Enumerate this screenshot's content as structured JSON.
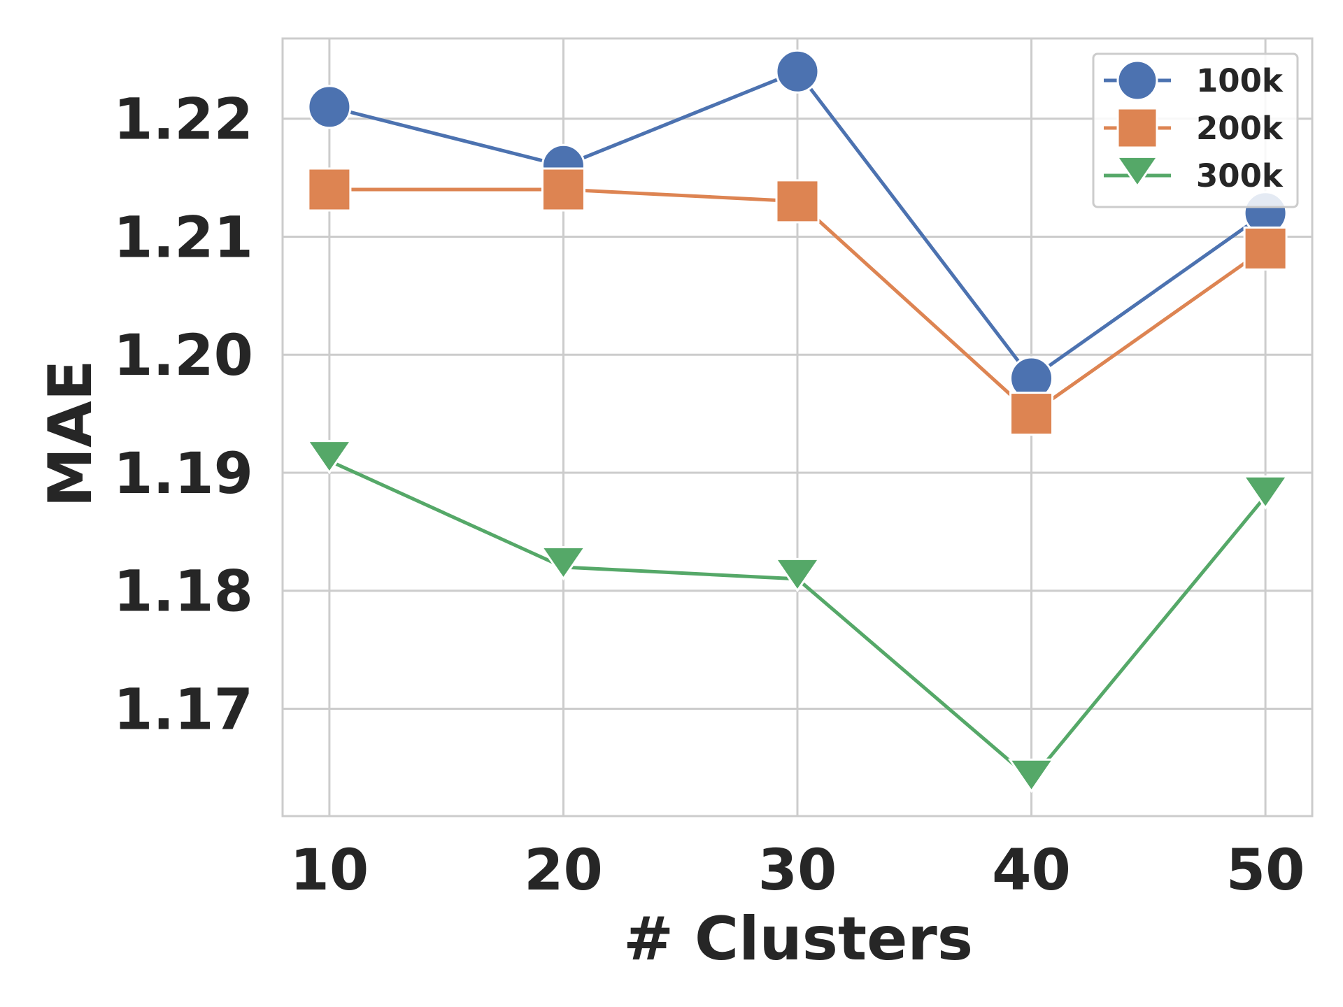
{
  "chart_data": {
    "type": "line",
    "title": "",
    "xlabel": "# Clusters",
    "ylabel": "MAE",
    "x": [
      10,
      20,
      30,
      40,
      50
    ],
    "x_ticks": [
      10,
      20,
      30,
      40,
      50
    ],
    "y_ticks": [
      1.17,
      1.18,
      1.19,
      1.2,
      1.21,
      1.22
    ],
    "y_tick_labels": [
      "1.17",
      "1.18",
      "1.19",
      "1.20",
      "1.21",
      "1.22"
    ],
    "xlim": [
      8,
      52
    ],
    "ylim": [
      1.1609,
      1.2268
    ],
    "grid": true,
    "legend_position": "top-right",
    "series": [
      {
        "name": "100k",
        "marker": "circle",
        "color": "#4c72b0",
        "values": [
          1.221,
          1.216,
          1.224,
          1.198,
          1.212
        ]
      },
      {
        "name": "200k",
        "marker": "square",
        "color": "#dd8452",
        "values": [
          1.214,
          1.214,
          1.213,
          1.195,
          1.209
        ]
      },
      {
        "name": "300k",
        "marker": "triangle-down",
        "color": "#55a868",
        "values": [
          1.191,
          1.182,
          1.181,
          1.164,
          1.188
        ]
      }
    ]
  }
}
